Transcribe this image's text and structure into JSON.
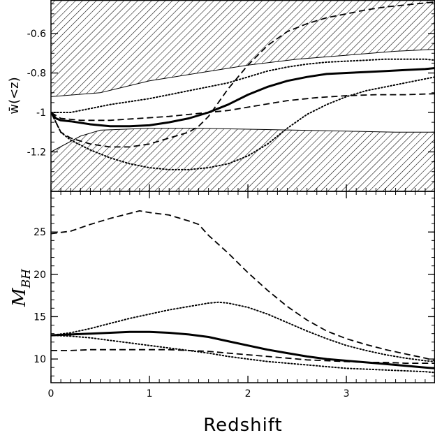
{
  "chart_data": [
    {
      "type": "line",
      "panel": "top",
      "ylabel": "w̄(<z)",
      "xlim": [
        0,
        3.9
      ],
      "ylim": [
        -1.4,
        -0.43
      ],
      "yticks": [
        -1.2,
        -1.0,
        -0.8,
        -0.6
      ],
      "ytick_labels": [
        "-1.2",
        "-1",
        "-0.8",
        "-0.6"
      ],
      "shaded_bands": [
        {
          "name": "upper-excluded",
          "x": [
            0,
            0.5,
            1,
            1.5,
            2,
            2.5,
            3,
            3.5,
            3.9
          ],
          "lower": [
            -0.92,
            -0.9,
            -0.84,
            -0.8,
            -0.76,
            -0.73,
            -0.71,
            -0.69,
            -0.68
          ],
          "upper": [
            -0.43,
            -0.43,
            -0.43,
            -0.43,
            -0.43,
            -0.43,
            -0.43,
            -0.43,
            -0.43
          ]
        },
        {
          "name": "lower-excluded",
          "x": [
            0,
            0.3,
            0.5,
            1,
            1.5,
            2,
            2.5,
            3,
            3.5,
            3.9
          ],
          "lower": [
            -1.4,
            -1.4,
            -1.4,
            -1.4,
            -1.4,
            -1.4,
            -1.4,
            -1.4,
            -1.4,
            -1.4
          ],
          "upper": [
            -1.2,
            -1.12,
            -1.09,
            -1.08,
            -1.08,
            -1.085,
            -1.09,
            -1.095,
            -1.1,
            -1.1
          ]
        }
      ],
      "series": [
        {
          "name": "solid-thick",
          "style": "solid-thick",
          "x": [
            0,
            0.05,
            0.1,
            0.2,
            0.4,
            0.6,
            0.8,
            1.0,
            1.2,
            1.4,
            1.6,
            1.8,
            2.0,
            2.2,
            2.4,
            2.6,
            2.8,
            3.0,
            3.2,
            3.4,
            3.6,
            3.8,
            3.9
          ],
          "y": [
            -1.0,
            -1.03,
            -1.04,
            -1.045,
            -1.06,
            -1.07,
            -1.07,
            -1.065,
            -1.05,
            -1.03,
            -1.0,
            -0.96,
            -0.91,
            -0.87,
            -0.84,
            -0.82,
            -0.805,
            -0.8,
            -0.795,
            -0.79,
            -0.785,
            -0.78,
            -0.775
          ]
        },
        {
          "name": "dotted-upper",
          "style": "dotted",
          "x": [
            0,
            0.2,
            0.4,
            0.6,
            0.8,
            1.0,
            1.2,
            1.4,
            1.6,
            1.8,
            2.0,
            2.2,
            2.4,
            2.6,
            2.8,
            3.0,
            3.2,
            3.4,
            3.6,
            3.8,
            3.9
          ],
          "y": [
            -1.0,
            -1.0,
            -0.98,
            -0.96,
            -0.945,
            -0.93,
            -0.91,
            -0.89,
            -0.87,
            -0.85,
            -0.82,
            -0.79,
            -0.77,
            -0.755,
            -0.745,
            -0.74,
            -0.735,
            -0.73,
            -0.73,
            -0.73,
            -0.735
          ]
        },
        {
          "name": "dashed-flat",
          "style": "dashed",
          "x": [
            0,
            0.1,
            0.3,
            0.6,
            0.9,
            1.2,
            1.5,
            1.8,
            2.1,
            2.4,
            2.7,
            3.0,
            3.3,
            3.6,
            3.9
          ],
          "y": [
            -1.0,
            -1.03,
            -1.04,
            -1.04,
            -1.03,
            -1.02,
            -1.005,
            -0.99,
            -0.965,
            -0.94,
            -0.925,
            -0.915,
            -0.91,
            -0.91,
            -0.905
          ]
        },
        {
          "name": "dashed-steep",
          "style": "dashed",
          "x": [
            0,
            0.05,
            0.1,
            0.2,
            0.4,
            0.6,
            0.8,
            1.0,
            1.2,
            1.4,
            1.5,
            1.6,
            1.8,
            2.0,
            2.2,
            2.4,
            2.6,
            2.8,
            3.0,
            3.2,
            3.4,
            3.6,
            3.8,
            3.9
          ],
          "y": [
            -1.0,
            -1.05,
            -1.1,
            -1.13,
            -1.16,
            -1.175,
            -1.175,
            -1.16,
            -1.13,
            -1.1,
            -1.07,
            -1.02,
            -0.88,
            -0.76,
            -0.66,
            -0.59,
            -0.55,
            -0.52,
            -0.5,
            -0.48,
            -0.465,
            -0.455,
            -0.445,
            -0.44
          ]
        },
        {
          "name": "dotted-dip",
          "style": "dotted",
          "x": [
            0,
            0.05,
            0.1,
            0.2,
            0.4,
            0.6,
            0.8,
            1.0,
            1.2,
            1.4,
            1.6,
            1.8,
            2.0,
            2.2,
            2.4,
            2.6,
            2.8,
            3.0,
            3.2,
            3.4,
            3.6,
            3.8,
            3.9
          ],
          "y": [
            -1.0,
            -1.05,
            -1.1,
            -1.14,
            -1.19,
            -1.23,
            -1.26,
            -1.28,
            -1.29,
            -1.29,
            -1.28,
            -1.26,
            -1.22,
            -1.16,
            -1.08,
            -1.01,
            -0.96,
            -0.92,
            -0.89,
            -0.87,
            -0.85,
            -0.83,
            -0.82
          ]
        }
      ]
    },
    {
      "type": "line",
      "panel": "bottom",
      "ylabel": "M",
      "ylabel_sub": "BH",
      "xlabel": "Redshift",
      "xlim": [
        0,
        3.9
      ],
      "ylim": [
        7.2,
        29.8
      ],
      "yticks": [
        10,
        15,
        20,
        25
      ],
      "ytick_labels": [
        "10",
        "15",
        "20",
        "25"
      ],
      "xticks": [
        0,
        1,
        2,
        3
      ],
      "xtick_labels": [
        "0",
        "1",
        "2",
        "3"
      ],
      "series": [
        {
          "name": "dashed-top",
          "style": "dashed",
          "x": [
            0,
            0.2,
            0.4,
            0.6,
            0.8,
            0.9,
            1.0,
            1.2,
            1.4,
            1.5,
            1.6,
            1.8,
            2.0,
            2.2,
            2.4,
            2.6,
            2.8,
            3.0,
            3.2,
            3.4,
            3.6,
            3.8,
            3.9
          ],
          "y": [
            24.8,
            25.1,
            25.9,
            26.6,
            27.2,
            27.5,
            27.3,
            27.0,
            26.3,
            25.9,
            24.6,
            22.5,
            20.2,
            18.1,
            16.2,
            14.6,
            13.3,
            12.4,
            11.7,
            11.1,
            10.6,
            10.1,
            9.8
          ]
        },
        {
          "name": "dotted-mid",
          "style": "dotted",
          "x": [
            0,
            0.2,
            0.4,
            0.6,
            0.8,
            1.0,
            1.2,
            1.4,
            1.6,
            1.7,
            1.8,
            2.0,
            2.2,
            2.4,
            2.6,
            2.8,
            3.0,
            3.2,
            3.4,
            3.6,
            3.8,
            3.9
          ],
          "y": [
            12.8,
            13.1,
            13.6,
            14.2,
            14.8,
            15.3,
            15.8,
            16.2,
            16.6,
            16.7,
            16.6,
            16.1,
            15.3,
            14.3,
            13.3,
            12.4,
            11.6,
            11.0,
            10.5,
            10.1,
            9.8,
            9.7
          ]
        },
        {
          "name": "solid-thick",
          "style": "solid-thick",
          "x": [
            0,
            0.2,
            0.4,
            0.6,
            0.8,
            1.0,
            1.2,
            1.4,
            1.6,
            1.8,
            2.0,
            2.2,
            2.4,
            2.6,
            2.8,
            3.0,
            3.2,
            3.4,
            3.6,
            3.8,
            3.9
          ],
          "y": [
            12.8,
            12.9,
            13.0,
            13.1,
            13.2,
            13.2,
            13.1,
            12.9,
            12.6,
            12.1,
            11.6,
            11.1,
            10.7,
            10.3,
            10.0,
            9.8,
            9.6,
            9.4,
            9.2,
            9.0,
            8.9
          ]
        },
        {
          "name": "dotted-low",
          "style": "dotted",
          "x": [
            0,
            0.2,
            0.4,
            0.6,
            0.8,
            1.0,
            1.2,
            1.4,
            1.6,
            1.8,
            2.0,
            2.2,
            2.4,
            2.6,
            2.8,
            3.0,
            3.2,
            3.4,
            3.6,
            3.8,
            3.9
          ],
          "y": [
            12.8,
            12.7,
            12.5,
            12.2,
            11.9,
            11.6,
            11.3,
            11.0,
            10.7,
            10.3,
            10.0,
            9.7,
            9.5,
            9.3,
            9.1,
            8.9,
            8.8,
            8.7,
            8.6,
            8.5,
            8.4
          ]
        },
        {
          "name": "dashed-low",
          "style": "dashed",
          "x": [
            0,
            0.2,
            0.4,
            0.6,
            0.8,
            1.0,
            1.2,
            1.4,
            1.6,
            1.8,
            2.0,
            2.2,
            2.4,
            2.6,
            2.8,
            3.0,
            3.2,
            3.4,
            3.6,
            3.8,
            3.9
          ],
          "y": [
            11.0,
            11.0,
            11.1,
            11.1,
            11.1,
            11.1,
            11.1,
            11.0,
            10.9,
            10.7,
            10.5,
            10.3,
            10.1,
            9.9,
            9.8,
            9.7,
            9.6,
            9.6,
            9.5,
            9.5,
            9.5
          ]
        }
      ]
    }
  ]
}
